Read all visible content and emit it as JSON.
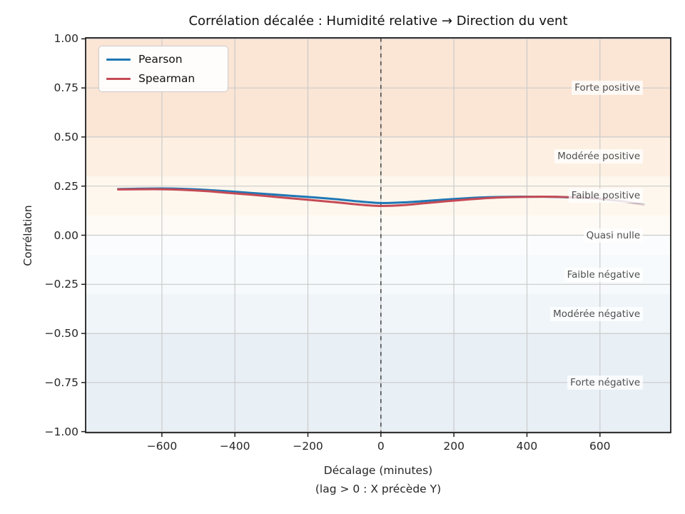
{
  "chart_data": {
    "type": "line",
    "title": "Corrélation décalée : Humidité relative → Direction du vent",
    "xlabel": "Décalage (minutes)",
    "xlabel_note": "(lag > 0 : X précède Y)",
    "ylabel": "Corrélation",
    "xlim": [
      -809,
      794
    ],
    "ylim": [
      -1.005,
      1.005
    ],
    "grid": true,
    "legend_position": "upper left",
    "grid_color": "#cbcbcb",
    "spine_color": "#1f1f1f",
    "zero_line": {
      "x": 0,
      "color": "#404040",
      "style": "dashed"
    },
    "xticks": [
      {
        "value": -600,
        "label": "−600"
      },
      {
        "value": -400,
        "label": "−400"
      },
      {
        "value": -200,
        "label": "−200"
      },
      {
        "value": 0,
        "label": "0"
      },
      {
        "value": 200,
        "label": "200"
      },
      {
        "value": 400,
        "label": "400"
      },
      {
        "value": 600,
        "label": "600"
      }
    ],
    "yticks": [
      {
        "value": 1.0,
        "label": "1.00"
      },
      {
        "value": 0.75,
        "label": "0.75"
      },
      {
        "value": 0.5,
        "label": "0.50"
      },
      {
        "value": 0.25,
        "label": "0.25"
      },
      {
        "value": 0.0,
        "label": "0.00"
      },
      {
        "value": -0.25,
        "label": "−0.25"
      },
      {
        "value": -0.5,
        "label": "−0.50"
      },
      {
        "value": -0.75,
        "label": "−0.75"
      },
      {
        "value": -1.0,
        "label": "−1.00"
      }
    ],
    "x": [
      -720,
      -660,
      -600,
      -540,
      -480,
      -420,
      -360,
      -300,
      -240,
      -180,
      -120,
      -60,
      0,
      60,
      120,
      180,
      240,
      300,
      360,
      420,
      480,
      540,
      600,
      660,
      720
    ],
    "series": [
      {
        "name": "Pearson",
        "color": "#1f77b4",
        "values": [
          0.235,
          0.237,
          0.238,
          0.236,
          0.231,
          0.224,
          0.216,
          0.208,
          0.2,
          0.192,
          0.183,
          0.172,
          0.164,
          0.167,
          0.174,
          0.182,
          0.189,
          0.194,
          0.196,
          0.196,
          0.195,
          0.191,
          0.185,
          0.173,
          0.158
        ]
      },
      {
        "name": "Spearman",
        "color": "#c54a55",
        "values": [
          0.233,
          0.234,
          0.234,
          0.231,
          0.225,
          0.216,
          0.207,
          0.197,
          0.187,
          0.177,
          0.167,
          0.156,
          0.149,
          0.153,
          0.163,
          0.173,
          0.182,
          0.19,
          0.194,
          0.196,
          0.196,
          0.192,
          0.186,
          0.174,
          0.155
        ]
      }
    ],
    "fade": {
      "start_x": 480,
      "end_opacity": 0.12
    },
    "bands": [
      {
        "from": 0.5,
        "to": 1.005,
        "color": "#fbe5d5"
      },
      {
        "from": 0.3,
        "to": 0.5,
        "color": "#fdf0e2"
      },
      {
        "from": 0.1,
        "to": 0.3,
        "color": "#fef7ed"
      },
      {
        "from": 0.0,
        "to": 0.1,
        "color": "#fefbf6"
      },
      {
        "from": -0.1,
        "to": 0.0,
        "color": "#fbfcfd"
      },
      {
        "from": -0.3,
        "to": -0.1,
        "color": "#f7fafc"
      },
      {
        "from": -0.5,
        "to": -0.3,
        "color": "#eff5f9"
      },
      {
        "from": -1.005,
        "to": -0.5,
        "color": "#e8eff5"
      }
    ],
    "band_labels": [
      {
        "text": "Forte positive",
        "value": 0.75
      },
      {
        "text": "Modérée positive",
        "value": 0.4
      },
      {
        "text": "Faible positive",
        "value": 0.2
      },
      {
        "text": "Quasi nulle",
        "value": 0.0
      },
      {
        "text": "Faible négative",
        "value": -0.2
      },
      {
        "text": "Modérée négative",
        "value": -0.4
      },
      {
        "text": "Forte négative",
        "value": -0.75
      }
    ],
    "band_label_right_x": 718
  }
}
